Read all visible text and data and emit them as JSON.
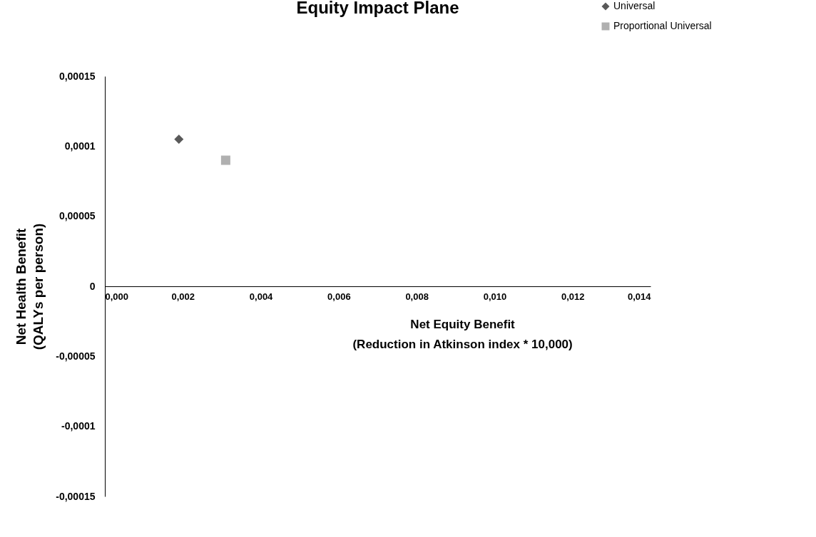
{
  "chart_data": {
    "type": "scatter",
    "title": "Equity Impact Plane",
    "xlabel": "Net Equity Benefit\n(Reduction in Atkinson index * 10,000)",
    "ylabel": "Net Health Benefit\n(QALYs per person)",
    "series": [
      {
        "name": "Universal",
        "color": "#595959",
        "marker": "diamond",
        "x": [
          0.0019
        ],
        "values": [
          0.000105
        ]
      },
      {
        "name": "Proportional Universal",
        "color": "#b0b0b0",
        "marker": "square",
        "x": [
          0.0031
        ],
        "values": [
          9e-05
        ]
      }
    ],
    "xlim": [
      0,
      0.014
    ],
    "xticks": [
      {
        "value": 0,
        "label": "0,000"
      },
      {
        "value": 0.002,
        "label": "0,002"
      },
      {
        "value": 0.004,
        "label": "0,004"
      },
      {
        "value": 0.006,
        "label": "0,006"
      },
      {
        "value": 0.008,
        "label": "0,008"
      },
      {
        "value": 0.01,
        "label": "0,010"
      },
      {
        "value": 0.012,
        "label": "0,012"
      },
      {
        "value": 0.014,
        "label": "0,014"
      }
    ],
    "ylim": [
      -0.00015,
      0.00015
    ],
    "yticks": [
      {
        "value": -0.00015,
        "label": "-0,00015"
      },
      {
        "value": -0.0001,
        "label": "-0,0001"
      },
      {
        "value": -5e-05,
        "label": "-0,00005"
      },
      0,
      {
        "value": 5e-05,
        "label": "0,00005"
      },
      {
        "value": 0.0001,
        "label": "0,0001"
      },
      {
        "value": 0.00015,
        "label": "0,00015"
      }
    ],
    "grid": false,
    "legend": "top right"
  }
}
